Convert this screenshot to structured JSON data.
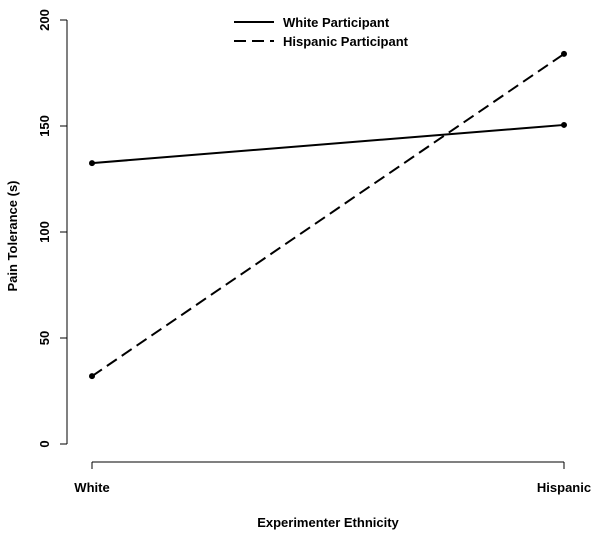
{
  "chart_data": {
    "type": "line",
    "categories": [
      "White",
      "Hispanic"
    ],
    "series": [
      {
        "name": "White Participant",
        "values": [
          132.5,
          150.5
        ],
        "dash": "solid"
      },
      {
        "name": "Hispanic Participant",
        "values": [
          32,
          184
        ],
        "dash": "dashed"
      }
    ],
    "xlabel": "Experimenter Ethnicity",
    "ylabel": "Pain Tolerance (s)",
    "ylim": [
      0,
      200
    ],
    "yticks": [
      "0",
      "50",
      "100",
      "150",
      "200"
    ],
    "legend_position": "top-center",
    "grid": false
  }
}
